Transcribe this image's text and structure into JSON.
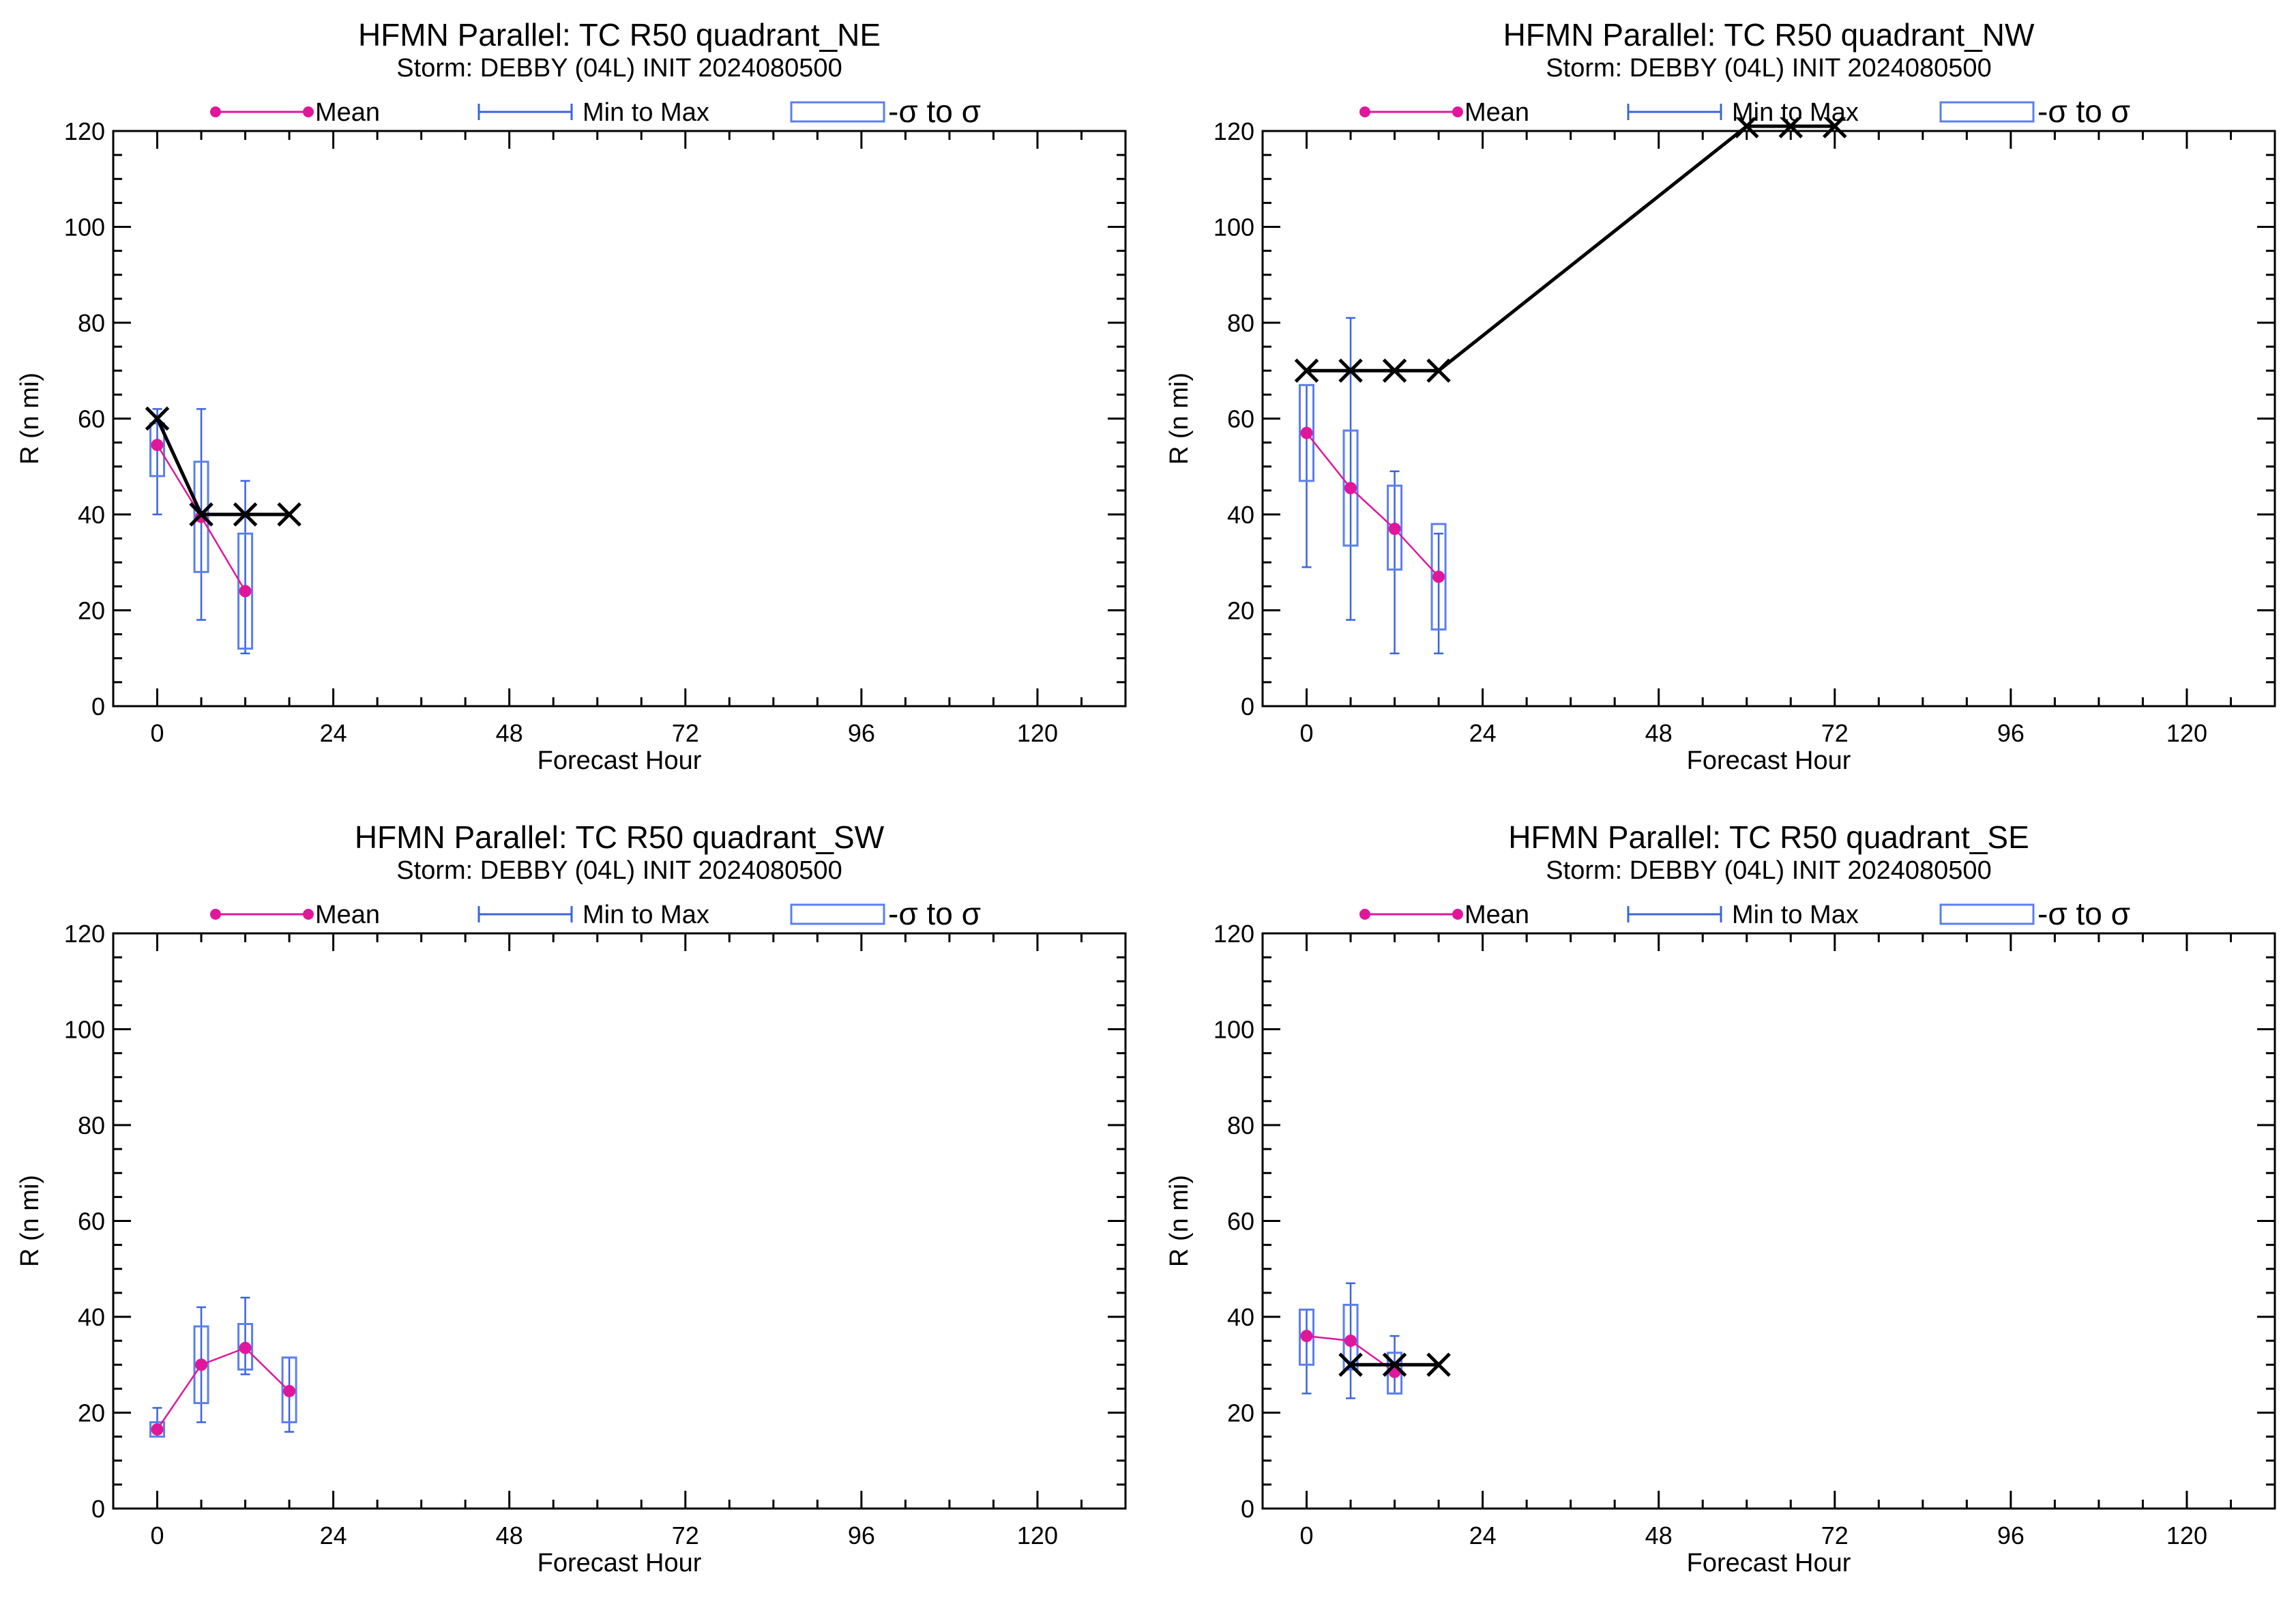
{
  "legend": {
    "mean_label": "Mean",
    "minmax_label": "Min to Max",
    "sigma_label": "-σ to σ"
  },
  "colors": {
    "mean": "#e0169b",
    "minmax": "#3b63e0",
    "box": "#5b7ff0",
    "obs": "#000000",
    "axis": "#000000"
  },
  "chart_data": [
    {
      "type": "box",
      "title": "HFMN Parallel: TC  R50 quadrant_NE",
      "subtitle": "Storm: DEBBY (04L) INIT 2024080500",
      "xlabel": "Forecast Hour",
      "ylabel": "R (n mi)",
      "xlim": [
        -6,
        132
      ],
      "ylim": [
        0,
        120
      ],
      "xticks": [
        "0",
        "24",
        "48",
        "72",
        "96",
        "120"
      ],
      "yticks": [
        "0",
        "20",
        "40",
        "60",
        "80",
        "100",
        "120"
      ],
      "stats": [
        {
          "x": 0,
          "mean": 54.5,
          "min": 40,
          "max": 62,
          "sig_lo": 48,
          "sig_hi": 59
        },
        {
          "x": 6,
          "mean": 39.5,
          "min": 18,
          "max": 62,
          "sig_lo": 28,
          "sig_hi": 51
        },
        {
          "x": 12,
          "mean": 24,
          "min": 11,
          "max": 47,
          "sig_lo": 12,
          "sig_hi": 36
        }
      ],
      "observed": [
        {
          "x": 0,
          "y": 60
        },
        {
          "x": 6,
          "y": 40
        },
        {
          "x": 12,
          "y": 40
        },
        {
          "x": 18,
          "y": 40
        }
      ]
    },
    {
      "type": "box",
      "title": "HFMN Parallel: TC  R50 quadrant_NW",
      "subtitle": "Storm: DEBBY (04L) INIT 2024080500",
      "xlabel": "Forecast Hour",
      "ylabel": "R (n mi)",
      "xlim": [
        -6,
        132
      ],
      "ylim": [
        0,
        120
      ],
      "xticks": [
        "0",
        "24",
        "48",
        "72",
        "96",
        "120"
      ],
      "yticks": [
        "0",
        "20",
        "40",
        "60",
        "80",
        "100",
        "120"
      ],
      "stats": [
        {
          "x": 0,
          "mean": 57,
          "min": 29,
          "max": 67,
          "sig_lo": 47,
          "sig_hi": 67
        },
        {
          "x": 6,
          "mean": 45.5,
          "min": 18,
          "max": 81,
          "sig_lo": 33.5,
          "sig_hi": 57.5
        },
        {
          "x": 12,
          "mean": 37,
          "min": 11,
          "max": 49,
          "sig_lo": 28.5,
          "sig_hi": 46
        },
        {
          "x": 18,
          "mean": 27,
          "min": 11,
          "max": 36,
          "sig_lo": 16,
          "sig_hi": 38
        }
      ],
      "observed": [
        {
          "x": 0,
          "y": 70
        },
        {
          "x": 6,
          "y": 70
        },
        {
          "x": 12,
          "y": 70
        },
        {
          "x": 18,
          "y": 70
        },
        {
          "x": 60,
          "y": 121
        },
        {
          "x": 66,
          "y": 121
        },
        {
          "x": 72,
          "y": 121
        }
      ]
    },
    {
      "type": "box",
      "title": "HFMN Parallel: TC  R50 quadrant_SW",
      "subtitle": "Storm: DEBBY (04L) INIT 2024080500",
      "xlabel": "Forecast Hour",
      "ylabel": "R (n mi)",
      "xlim": [
        -6,
        132
      ],
      "ylim": [
        0,
        120
      ],
      "xticks": [
        "0",
        "24",
        "48",
        "72",
        "96",
        "120"
      ],
      "yticks": [
        "0",
        "20",
        "40",
        "60",
        "80",
        "100",
        "120"
      ],
      "stats": [
        {
          "x": 0,
          "mean": 16.5,
          "min": 15,
          "max": 21,
          "sig_lo": 15,
          "sig_hi": 18
        },
        {
          "x": 6,
          "mean": 30,
          "min": 18,
          "max": 42,
          "sig_lo": 22,
          "sig_hi": 38
        },
        {
          "x": 12,
          "mean": 33.5,
          "min": 28,
          "max": 44,
          "sig_lo": 29,
          "sig_hi": 38.5
        },
        {
          "x": 18,
          "mean": 24.5,
          "min": 16,
          "max": 31.5,
          "sig_lo": 18,
          "sig_hi": 31.5
        }
      ],
      "observed": []
    },
    {
      "type": "box",
      "title": "HFMN Parallel: TC  R50 quadrant_SE",
      "subtitle": "Storm: DEBBY (04L) INIT 2024080500",
      "xlabel": "Forecast Hour",
      "ylabel": "R (n mi)",
      "xlim": [
        -6,
        132
      ],
      "ylim": [
        0,
        120
      ],
      "xticks": [
        "0",
        "24",
        "48",
        "72",
        "96",
        "120"
      ],
      "yticks": [
        "0",
        "20",
        "40",
        "60",
        "80",
        "100",
        "120"
      ],
      "stats": [
        {
          "x": 0,
          "mean": 36,
          "min": 24,
          "max": 41.5,
          "sig_lo": 30,
          "sig_hi": 41.5
        },
        {
          "x": 6,
          "mean": 35,
          "min": 23,
          "max": 47,
          "sig_lo": 29,
          "sig_hi": 42.5
        },
        {
          "x": 12,
          "mean": 28.5,
          "min": 24,
          "max": 36,
          "sig_lo": 24,
          "sig_hi": 32.5
        }
      ],
      "observed": [
        {
          "x": 6,
          "y": 30
        },
        {
          "x": 12,
          "y": 30
        },
        {
          "x": 18,
          "y": 30
        }
      ]
    }
  ]
}
